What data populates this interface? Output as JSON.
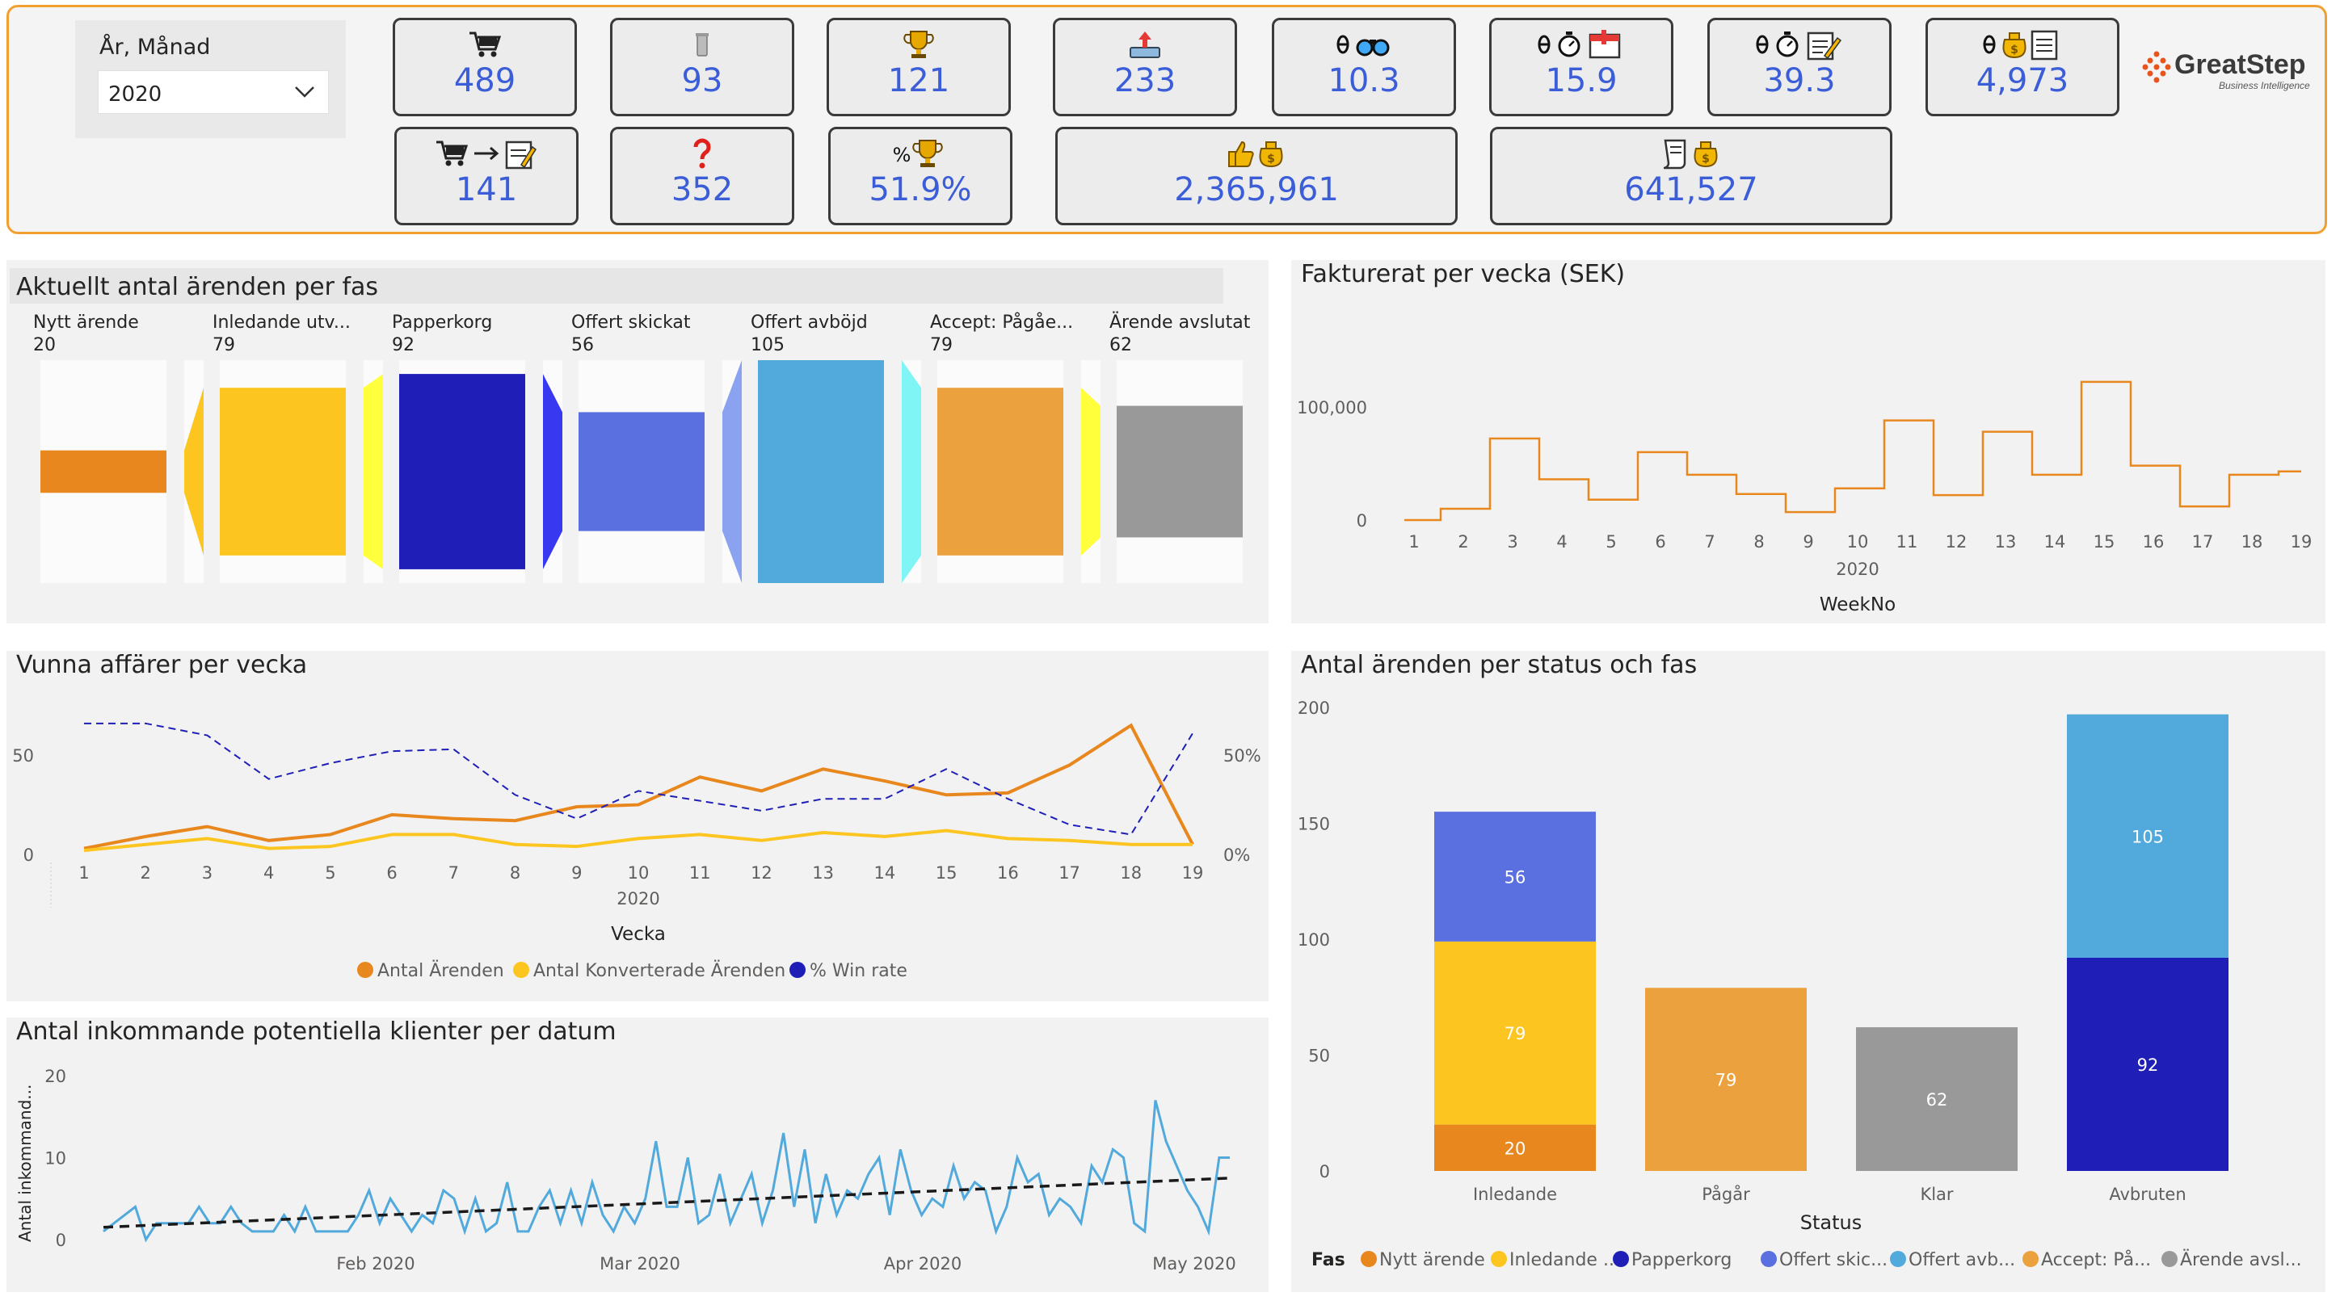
{
  "slicer": {
    "title": "År, Månad",
    "value": "2020"
  },
  "kpis": [
    {
      "icon": "cart-icon",
      "value": "489"
    },
    {
      "icon": "trash-icon",
      "value": "93"
    },
    {
      "icon": "trophy-icon",
      "value": "121"
    },
    {
      "icon": "send-icon",
      "value": "233"
    },
    {
      "icon": "binoculars-icon",
      "value": "10.3"
    },
    {
      "icon": "stopwatch-calendar-icon",
      "value": "15.9"
    },
    {
      "icon": "stopwatch-note-icon",
      "value": "39.3"
    },
    {
      "icon": "money-document-icon",
      "value": "4,973"
    },
    {
      "icon": "cart-to-note-icon",
      "value": "141"
    },
    {
      "icon": "question-icon",
      "value": "352"
    },
    {
      "icon": "percent-trophy-icon",
      "value": "51.9%"
    },
    {
      "icon": "thumbs-up-money-icon",
      "value": "2,365,961"
    },
    {
      "icon": "document-money-icon",
      "value": "641,527"
    }
  ],
  "logo": {
    "name": "GreatStep",
    "tagline": "Business Intelligence"
  },
  "colors": {
    "nytt": "#e8871e",
    "inledande": "#fcc520",
    "papperkorg": "#1f1fb8",
    "offert_skickat": "#5a6fe0",
    "offert_avbojd": "#52a9dc",
    "accept": "#eba23e",
    "avslutat": "#999999",
    "accent_line": "#e8871e",
    "kpi_value": "#3b5ed8",
    "header_border": "#f0a030"
  },
  "funnel": {
    "title": "Aktuellt antal ärenden per fas",
    "phases": [
      {
        "label": "Nytt ärende",
        "value": 20,
        "color": "#e8871e",
        "connector": null
      },
      {
        "label": "Inledande utv...",
        "value": 79,
        "color": "#fcc520",
        "connector": "#fcc520"
      },
      {
        "label": "Papperkorg",
        "value": 92,
        "color": "#1f1fb8",
        "connector": "#ffff3c"
      },
      {
        "label": "Offert skickat",
        "value": 56,
        "color": "#5a6fe0",
        "connector": "#3838f0"
      },
      {
        "label": "Offert avböjd",
        "value": 105,
        "color": "#52a9dc",
        "connector": "#8aa2f0"
      },
      {
        "label": "Accept: Pågåe...",
        "value": 79,
        "color": "#eba23e",
        "connector": "#80f5f5"
      },
      {
        "label": "Ärende avslutat",
        "value": 62,
        "color": "#999999",
        "connector": "#ffff3c"
      }
    ]
  },
  "invoiced": {
    "title": "Fakturerat per vecka (SEK)",
    "xlabel": "WeekNo",
    "year_label": "2020",
    "chart_data": {
      "type": "line",
      "step": true,
      "x": [
        1,
        2,
        3,
        4,
        5,
        6,
        7,
        8,
        9,
        10,
        11,
        12,
        13,
        14,
        15,
        16,
        17,
        18,
        19
      ],
      "values": [
        0,
        10000,
        72000,
        36000,
        18000,
        60000,
        40000,
        23000,
        7000,
        28000,
        88000,
        22000,
        78000,
        40000,
        122000,
        48000,
        12000,
        40000,
        43000
      ],
      "y_ticks": [
        "0",
        "100,000"
      ],
      "ylim": [
        0,
        130000
      ],
      "color": "#e8871e"
    }
  },
  "won": {
    "title": "Vunna affärer per vecka",
    "xlabel": "Vecka",
    "year_label": "2020",
    "y_ticks_left": [
      "0",
      "50"
    ],
    "y_ticks_right": [
      "0%",
      "50%"
    ],
    "legend": [
      "Antal Ärenden",
      "Antal Konverterade Ärenden",
      "% Win rate"
    ],
    "chart_data": {
      "type": "line",
      "x": [
        1,
        2,
        3,
        4,
        5,
        6,
        7,
        8,
        9,
        10,
        11,
        12,
        13,
        14,
        15,
        16,
        17,
        18,
        19
      ],
      "series": [
        {
          "name": "Antal Ärenden",
          "axis": "left",
          "color": "#e8871e",
          "values": [
            3,
            9,
            14,
            7,
            10,
            20,
            18,
            17,
            24,
            25,
            39,
            32,
            43,
            37,
            30,
            31,
            45,
            65,
            5
          ]
        },
        {
          "name": "Antal Konverterade Ärenden",
          "axis": "left",
          "color": "#fcc520",
          "values": [
            2,
            5,
            8,
            3,
            4,
            10,
            10,
            5,
            4,
            8,
            10,
            7,
            11,
            9,
            12,
            8,
            7,
            5,
            5
          ]
        },
        {
          "name": "% Win rate",
          "axis": "right",
          "color": "#1f1fb8",
          "dashed": true,
          "values": [
            66,
            66,
            60,
            38,
            46,
            52,
            53,
            30,
            18,
            32,
            27,
            22,
            28,
            28,
            43,
            28,
            15,
            10,
            61
          ]
        }
      ],
      "ylim": [
        0,
        70
      ],
      "ylim_right": [
        0,
        70
      ]
    }
  },
  "incoming": {
    "title": "Antal inkommande potentiella klienter per datum",
    "ylabel": "Antal inkommand...",
    "x_ticks": [
      "Feb 2020",
      "Mar 2020",
      "Apr 2020",
      "May 2020"
    ],
    "y_ticks": [
      "0",
      "10",
      "20"
    ],
    "chart_data": {
      "type": "line",
      "x_start": "2020-01-06",
      "values": [
        1,
        2,
        3,
        4,
        0,
        2,
        2,
        2,
        2,
        4,
        2,
        2,
        4,
        2,
        1,
        1,
        1,
        3,
        1,
        4,
        1,
        1,
        1,
        1,
        3,
        6,
        2,
        5,
        3,
        1,
        3,
        2,
        6,
        5,
        1,
        5,
        1,
        2,
        7,
        1,
        1,
        4,
        6,
        2,
        6,
        2,
        7,
        3,
        1,
        4,
        2,
        5,
        12,
        4,
        4,
        10,
        2,
        3,
        8,
        2,
        5,
        8,
        2,
        6,
        13,
        4,
        11,
        2,
        8,
        3,
        6,
        5,
        8,
        10,
        3,
        11,
        6,
        3,
        5,
        4,
        9,
        5,
        7,
        6,
        1,
        4,
        10,
        7,
        8,
        3,
        5,
        4,
        2,
        9,
        7,
        11,
        10,
        2,
        1,
        17,
        12,
        9,
        6,
        4,
        1,
        10,
        10
      ],
      "trend": [
        1.5,
        7.5
      ],
      "ylim": [
        0,
        20
      ],
      "color": "#52a9dc"
    }
  },
  "status": {
    "title": "Antal ärenden per status och fas",
    "xlabel": "Status",
    "legend_title": "Fas",
    "legend": [
      "Nytt ärende",
      "Inledande ...",
      "Papperkorg",
      "Offert skic...",
      "Offert avb...",
      "Accept: På...",
      "Ärende avsl..."
    ],
    "legend_colors": [
      "#e8871e",
      "#fcc520",
      "#1f1fb8",
      "#5a6fe0",
      "#52a9dc",
      "#eba23e",
      "#999999"
    ],
    "y_ticks": [
      "0",
      "50",
      "100",
      "150",
      "200"
    ],
    "chart_data": {
      "type": "bar",
      "stacked": true,
      "categories": [
        "Inledande",
        "Pågår",
        "Klar",
        "Avbruten"
      ],
      "series": [
        {
          "name": "Nytt ärende",
          "color": "#e8871e",
          "values": [
            20,
            0,
            0,
            0
          ]
        },
        {
          "name": "Inledande ...",
          "color": "#fcc520",
          "values": [
            79,
            0,
            0,
            0
          ]
        },
        {
          "name": "Offert skic...",
          "color": "#5a6fe0",
          "values": [
            56,
            0,
            0,
            0
          ]
        },
        {
          "name": "Accept: På...",
          "color": "#eba23e",
          "values": [
            0,
            79,
            0,
            0
          ]
        },
        {
          "name": "Ärende avsl...",
          "color": "#999999",
          "values": [
            0,
            0,
            62,
            0
          ]
        },
        {
          "name": "Papperkorg",
          "color": "#1f1fb8",
          "values": [
            0,
            0,
            0,
            92
          ]
        },
        {
          "name": "Offert avb...",
          "color": "#52a9dc",
          "values": [
            0,
            0,
            0,
            105
          ]
        }
      ],
      "ylim": [
        0,
        200
      ]
    }
  }
}
